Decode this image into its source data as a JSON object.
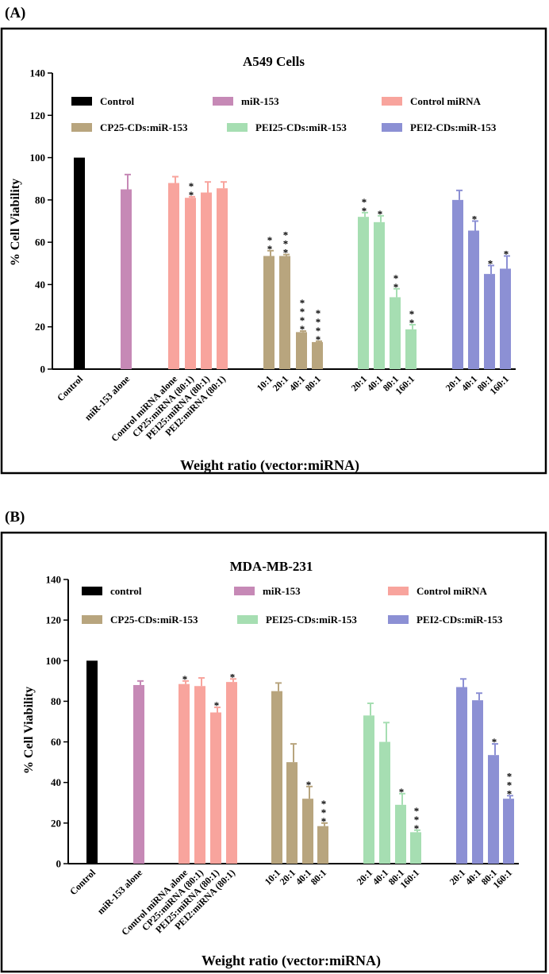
{
  "colors": {
    "Control": "#000000",
    "miR-153": "#c689b6",
    "Control miRNA": "#f8a49d",
    "CP25-CDs:miR-153": "#b8a57e",
    "PEI25-CDs:miR-153": "#a6deb2",
    "PEI2-CDs:miR-153": "#8c90d4"
  },
  "chart_data": [
    {
      "type": "bar",
      "panel_label": "(A)",
      "title": "A549 Cells",
      "xlabel": "Weight ratio (vector:miRNA)",
      "ylabel": "% Cell Viability",
      "ylim": [
        0,
        140
      ],
      "yticks": [
        0,
        20,
        40,
        60,
        80,
        100,
        120,
        140
      ],
      "legend": [
        "Control",
        "miR-153",
        "Control miRNA",
        "CP25-CDs:miR-153",
        "PEI25-CDs:miR-153",
        "PEI2-CDs:miR-153"
      ],
      "groups": [
        {
          "name": "Control",
          "bars": [
            {
              "label": "Control",
              "value": 100,
              "error": 0,
              "sig": ""
            }
          ]
        },
        {
          "name": "miR-153",
          "bars": [
            {
              "label": "miR-153 alone",
              "value": 85,
              "error": 7,
              "sig": ""
            }
          ]
        },
        {
          "name": "Control miRNA",
          "bars": [
            {
              "label": "Control miRNA alone",
              "value": 88,
              "error": 3,
              "sig": ""
            },
            {
              "label": "CP25:miRNA (80:1)",
              "value": 81,
              "error": 0.5,
              "sig": "**"
            },
            {
              "label": "PEI25:miRNA (80:1)",
              "value": 83.5,
              "error": 5,
              "sig": ""
            },
            {
              "label": "PEI2:miRNA (80:1)",
              "value": 85.5,
              "error": 3,
              "sig": ""
            }
          ]
        },
        {
          "name": "CP25-CDs:miR-153",
          "bars": [
            {
              "label": "10:1",
              "value": 53.5,
              "error": 2.5,
              "sig": "**"
            },
            {
              "label": "20:1",
              "value": 53.5,
              "error": 0.7,
              "sig": "***"
            },
            {
              "label": "40:1",
              "value": 17.5,
              "error": 0.5,
              "sig": "****"
            },
            {
              "label": "80:1",
              "value": 12.8,
              "error": 0.4,
              "sig": "****"
            }
          ]
        },
        {
          "name": "PEI25-CDs:miR-153",
          "bars": [
            {
              "label": "20:1",
              "value": 72,
              "error": 2,
              "sig": "**"
            },
            {
              "label": "40:1",
              "value": 69.5,
              "error": 3,
              "sig": "*"
            },
            {
              "label": "80:1",
              "value": 34,
              "error": 4,
              "sig": "**"
            },
            {
              "label": "160:1",
              "value": 18.8,
              "error": 2.2,
              "sig": "**"
            }
          ]
        },
        {
          "name": "PEI2-CDs:miR-153",
          "bars": [
            {
              "label": "20:1",
              "value": 80,
              "error": 4.5,
              "sig": ""
            },
            {
              "label": "40:1",
              "value": 65.5,
              "error": 4.5,
              "sig": "*"
            },
            {
              "label": "80:1",
              "value": 45,
              "error": 4,
              "sig": "*"
            },
            {
              "label": "160:1",
              "value": 47.5,
              "error": 6,
              "sig": "*"
            }
          ]
        }
      ]
    },
    {
      "type": "bar",
      "panel_label": "(B)",
      "title": "MDA-MB-231",
      "xlabel": "Weight ratio (vector:miRNA)",
      "ylabel": "% Cell Viability",
      "ylim": [
        0,
        140
      ],
      "yticks": [
        0,
        20,
        40,
        60,
        80,
        100,
        120,
        140
      ],
      "legend": [
        "control",
        "miR-153",
        "Control miRNA",
        "CP25-CDs:miR-153",
        "PEI25-CDs:miR-153",
        "PEI2-CDs:miR-153"
      ],
      "groups": [
        {
          "name": "Control",
          "bars": [
            {
              "label": "Control",
              "value": 100,
              "error": 0,
              "sig": ""
            }
          ]
        },
        {
          "name": "miR-153",
          "bars": [
            {
              "label": "miR-153 alone",
              "value": 88,
              "error": 2,
              "sig": ""
            }
          ]
        },
        {
          "name": "Control miRNA",
          "bars": [
            {
              "label": "Control miRNA alone",
              "value": 88.5,
              "error": 1.5,
              "sig": "*"
            },
            {
              "label": "CP25:miRNA (80:1)",
              "value": 87.5,
              "error": 4,
              "sig": ""
            },
            {
              "label": "PEI25:miRNA (80:1)",
              "value": 74.5,
              "error": 2.5,
              "sig": "*"
            },
            {
              "label": "PEI2:miRNA (80:1)",
              "value": 89.5,
              "error": 1.5,
              "sig": "*"
            }
          ]
        },
        {
          "name": "CP25-CDs:miR-153",
          "bars": [
            {
              "label": "10:1",
              "value": 85,
              "error": 4,
              "sig": ""
            },
            {
              "label": "20:1",
              "value": 50,
              "error": 9,
              "sig": ""
            },
            {
              "label": "40:1",
              "value": 32,
              "error": 6,
              "sig": "*"
            },
            {
              "label": "80:1",
              "value": 18.5,
              "error": 1.5,
              "sig": "***"
            }
          ]
        },
        {
          "name": "PEI25-CDs:miR-153",
          "bars": [
            {
              "label": "20:1",
              "value": 73,
              "error": 6,
              "sig": ""
            },
            {
              "label": "40:1",
              "value": 60,
              "error": 9.5,
              "sig": ""
            },
            {
              "label": "80:1",
              "value": 29,
              "error": 5.5,
              "sig": "*"
            },
            {
              "label": "160:1",
              "value": 15.5,
              "error": 1,
              "sig": "***"
            }
          ]
        },
        {
          "name": "PEI2-CDs:miR-153",
          "bars": [
            {
              "label": "20:1",
              "value": 87,
              "error": 4,
              "sig": ""
            },
            {
              "label": "40:1",
              "value": 80.5,
              "error": 3.5,
              "sig": ""
            },
            {
              "label": "80:1",
              "value": 53.5,
              "error": 5.5,
              "sig": "*"
            },
            {
              "label": "160:1",
              "value": 32,
              "error": 1.5,
              "sig": "***"
            }
          ]
        }
      ]
    }
  ]
}
